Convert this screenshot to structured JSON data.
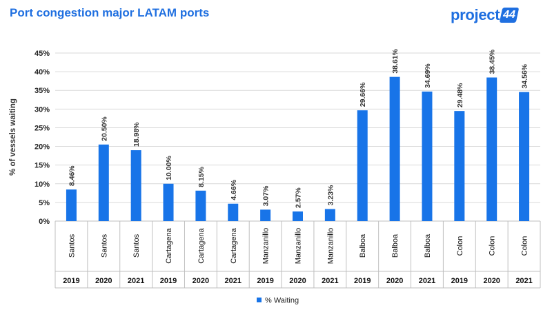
{
  "header": {
    "title": "Port congestion major LATAM ports",
    "logo_word": "project",
    "logo_badge": "44"
  },
  "colors": {
    "bar": "#1874e8",
    "title": "#1f6fe0",
    "grid": "#d9d9d9"
  },
  "chart_data": {
    "type": "bar",
    "title": "Port congestion major LATAM ports",
    "ylabel": "% of vessels waiting",
    "xlabel": "",
    "ylim": [
      0,
      45
    ],
    "yticks": [
      0,
      5,
      10,
      15,
      20,
      25,
      30,
      35,
      40,
      45
    ],
    "ytick_labels": [
      "0%",
      "5%",
      "10%",
      "15%",
      "20%",
      "25%",
      "30%",
      "35%",
      "40%",
      "45%"
    ],
    "grid": true,
    "legend": "bottom",
    "categories": [
      {
        "port": "Santos",
        "year": "2019"
      },
      {
        "port": "Santos",
        "year": "2020"
      },
      {
        "port": "Santos",
        "year": "2021"
      },
      {
        "port": "Cartagena",
        "year": "2019"
      },
      {
        "port": "Cartagena",
        "year": "2020"
      },
      {
        "port": "Cartagena",
        "year": "2021"
      },
      {
        "port": "Manzanillo",
        "year": "2019"
      },
      {
        "port": "Manzanillo",
        "year": "2020"
      },
      {
        "port": "Manzanillo",
        "year": "2021"
      },
      {
        "port": "Balboa",
        "year": "2019"
      },
      {
        "port": "Balboa",
        "year": "2020"
      },
      {
        "port": "Balboa",
        "year": "2021"
      },
      {
        "port": "Colon",
        "year": "2019"
      },
      {
        "port": "Colon",
        "year": "2020"
      },
      {
        "port": "Colon",
        "year": "2021"
      }
    ],
    "series": [
      {
        "name": "% Waiting",
        "values": [
          8.46,
          20.5,
          18.98,
          10.0,
          8.15,
          4.66,
          3.07,
          2.57,
          3.23,
          29.66,
          38.61,
          34.69,
          29.48,
          38.45,
          34.56
        ],
        "labels": [
          "8.46%",
          "20.50%",
          "18.98%",
          "10.00%",
          "8.15%",
          "4.66%",
          "3.07%",
          "2.57%",
          "3.23%",
          "29.66%",
          "38.61%",
          "34.69%",
          "29.48%",
          "38.45%",
          "34.56%"
        ]
      }
    ]
  }
}
